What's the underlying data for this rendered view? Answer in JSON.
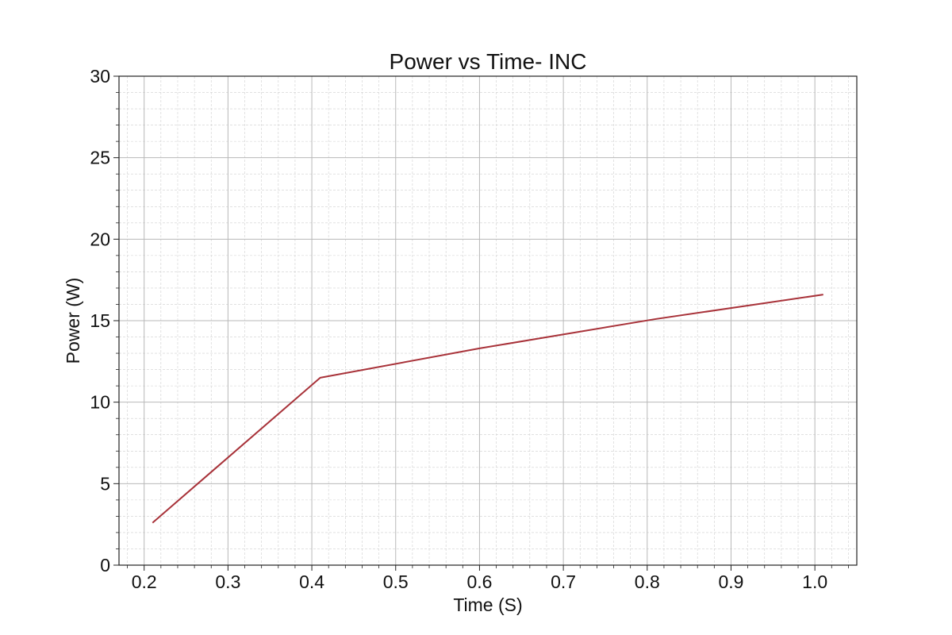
{
  "chart_data": {
    "type": "line",
    "title": "Power vs Time- INC",
    "xlabel": "Time (S)",
    "ylabel": "Power (W)",
    "xlim": [
      0.17,
      1.05
    ],
    "ylim": [
      0,
      30
    ],
    "xticks": [
      0.2,
      0.3,
      0.4,
      0.5,
      0.6,
      0.7,
      0.8,
      0.9,
      1.0
    ],
    "xtick_labels": [
      "0.2",
      "0.3",
      "0.4",
      "0.5",
      "0.6",
      "0.7",
      "0.8",
      "0.9",
      "1.0"
    ],
    "yticks": [
      0,
      5,
      10,
      15,
      20,
      25,
      30
    ],
    "ytick_labels": [
      "0",
      "5",
      "10",
      "15",
      "20",
      "25",
      "30"
    ],
    "grid": true,
    "minor_grid": true,
    "series": [
      {
        "color": "#a83239",
        "x": [
          0.21,
          0.41,
          0.6,
          0.81,
          1.01
        ],
        "y": [
          2.6,
          11.5,
          13.3,
          15.1,
          16.6
        ]
      }
    ]
  }
}
